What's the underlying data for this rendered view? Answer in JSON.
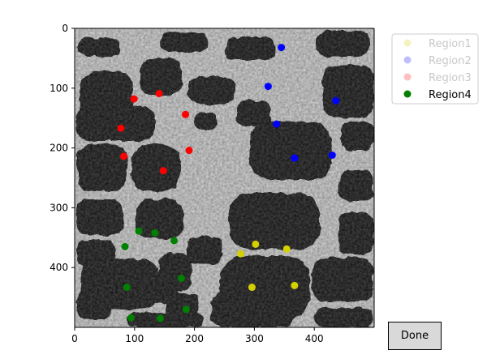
{
  "chart_data": {
    "type": "scatter",
    "background": "grayscale microscopy image (bright cell-boundary network on dark cells)",
    "xlim": [
      0,
      500
    ],
    "ylim": [
      500,
      0
    ],
    "y_inverted": true,
    "x_ticks": [
      0,
      100,
      200,
      300,
      400
    ],
    "y_ticks": [
      0,
      100,
      200,
      300,
      400
    ],
    "grid": false,
    "legend_placement": "top-right outside",
    "series": [
      {
        "name": "Region1",
        "color": "#d4d000",
        "active": false,
        "points": [
          [
            277,
            377
          ],
          [
            302,
            361
          ],
          [
            354,
            369
          ],
          [
            296,
            433
          ],
          [
            367,
            430
          ]
        ]
      },
      {
        "name": "Region2",
        "color": "#0000ff",
        "active": false,
        "points": [
          [
            345,
            32
          ],
          [
            323,
            97
          ],
          [
            436,
            121
          ],
          [
            337,
            160
          ],
          [
            367,
            217
          ],
          [
            430,
            212
          ]
        ]
      },
      {
        "name": "Region3",
        "color": "#ff0000",
        "active": false,
        "points": [
          [
            99,
            118
          ],
          [
            141,
            109
          ],
          [
            185,
            144
          ],
          [
            77,
            167
          ],
          [
            82,
            214
          ],
          [
            191,
            204
          ],
          [
            148,
            238
          ]
        ]
      },
      {
        "name": "Region4",
        "color": "#008000",
        "active": true,
        "points": [
          [
            107,
            339
          ],
          [
            134,
            342
          ],
          [
            166,
            355
          ],
          [
            84,
            365
          ],
          [
            178,
            418
          ],
          [
            87,
            433
          ],
          [
            186,
            470
          ],
          [
            94,
            484
          ],
          [
            143,
            485
          ]
        ]
      }
    ]
  },
  "controls": {
    "done_label": "Done"
  }
}
